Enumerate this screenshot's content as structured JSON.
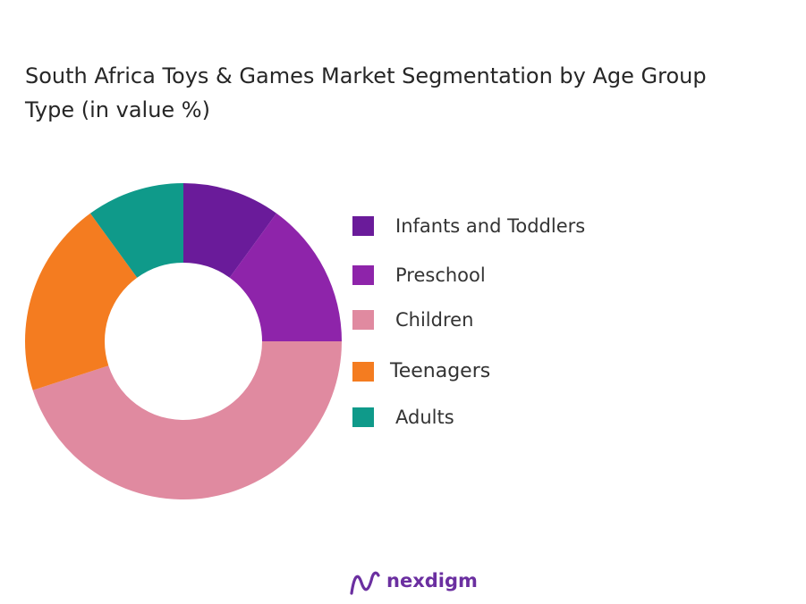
{
  "chart_data": {
    "type": "pie",
    "donut": true,
    "title": "South Africa Toys & Games Market Segmentation by Age Group Type  (in value %)",
    "categories": [
      "Infants and Toddlers",
      "Preschool",
      "Children",
      "Teenagers",
      "Adults"
    ],
    "values": [
      10,
      15,
      45,
      20,
      10
    ],
    "colors": [
      "#6a1b9a",
      "#8e24aa",
      "#e08aa0",
      "#f47c20",
      "#0f9a8a"
    ],
    "legend_position": "right"
  },
  "brand": {
    "name": "nexdigm",
    "color": "#6b2fa0"
  }
}
